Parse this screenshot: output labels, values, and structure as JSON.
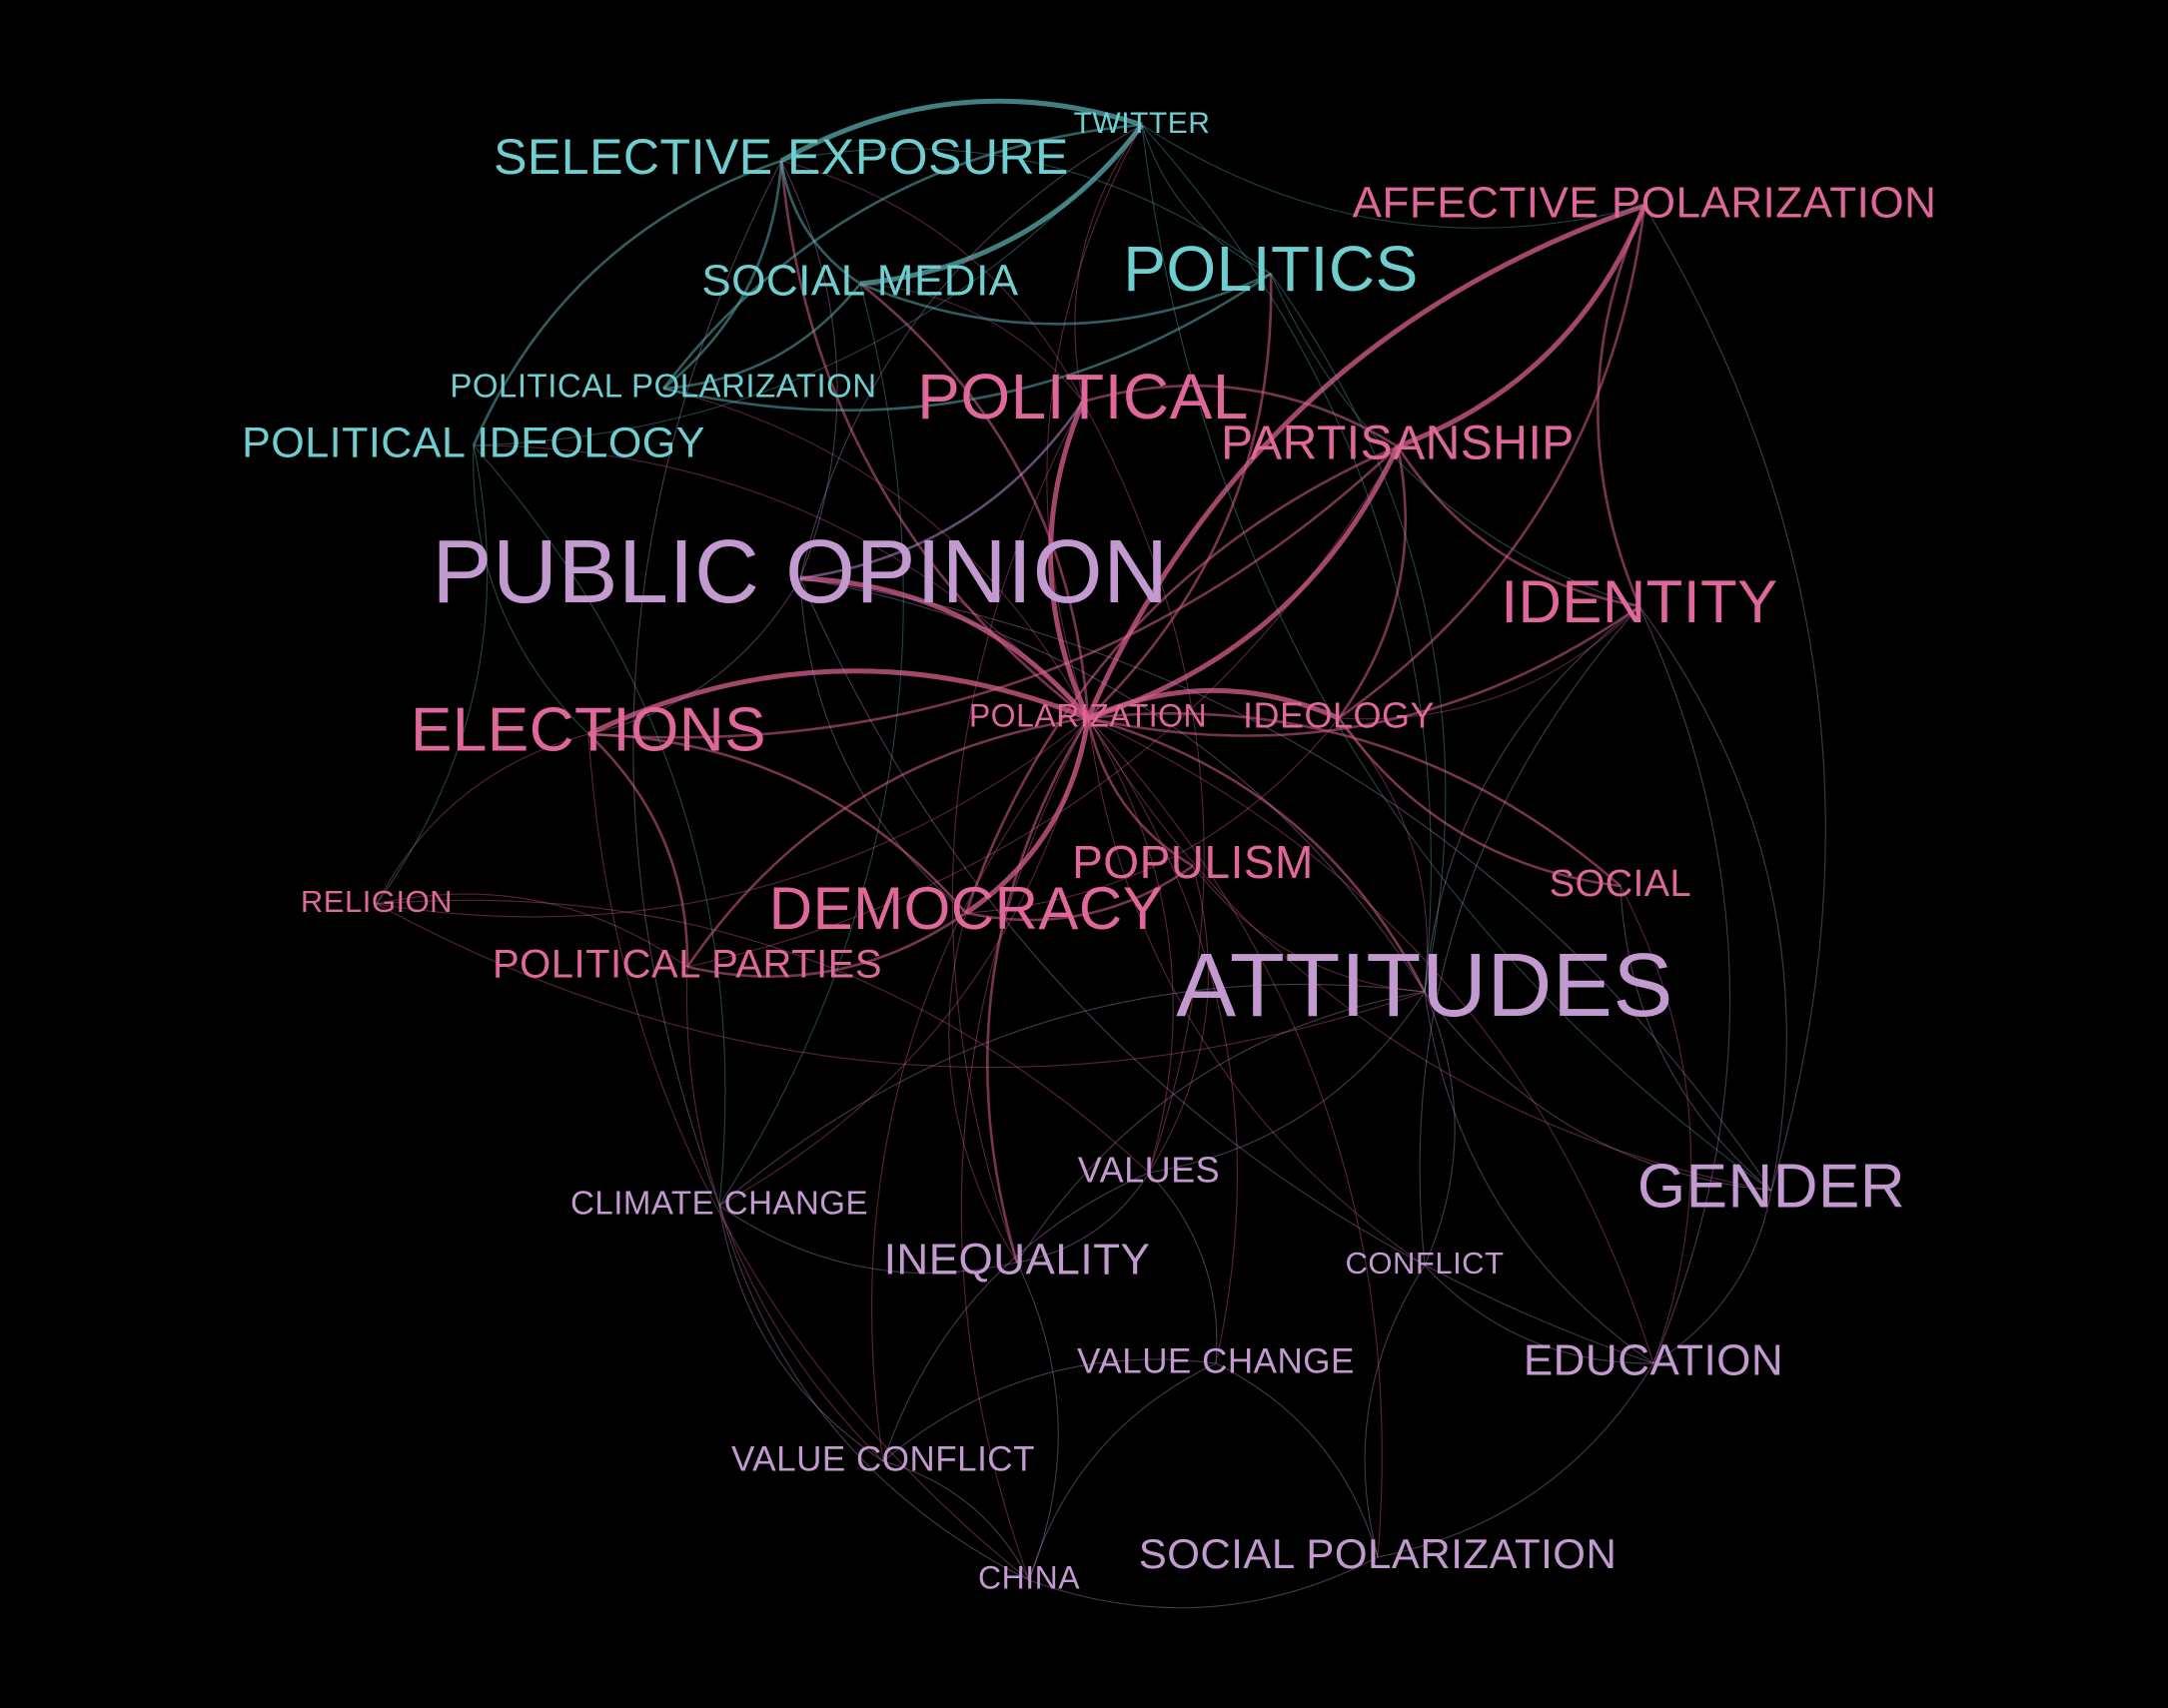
{
  "groups": {
    "cyan": {
      "color": "#6fcfd0",
      "edge": "#5aa9aa"
    },
    "pink": {
      "color": "#e0679a",
      "edge": "#d85f8f"
    },
    "violet": {
      "color": "#c39ad0",
      "edge": "#b48cc4"
    }
  },
  "nodes": [
    {
      "id": "twitter",
      "label": "TWITTER",
      "group": "cyan"
    },
    {
      "id": "selective_exposure",
      "label": "SELECTIVE EXPOSURE",
      "group": "cyan"
    },
    {
      "id": "affective_polarization",
      "label": "AFFECTIVE POLARIZATION",
      "group": "pink"
    },
    {
      "id": "social_media",
      "label": "SOCIAL MEDIA",
      "group": "cyan"
    },
    {
      "id": "politics",
      "label": "POLITICS",
      "group": "cyan"
    },
    {
      "id": "political_polarization",
      "label": "POLITICAL POLARIZATION",
      "group": "cyan"
    },
    {
      "id": "political",
      "label": "POLITICAL",
      "group": "pink"
    },
    {
      "id": "political_ideology",
      "label": "POLITICAL IDEOLOGY",
      "group": "cyan"
    },
    {
      "id": "partisanship",
      "label": "PARTISANSHIP",
      "group": "pink"
    },
    {
      "id": "public_opinion",
      "label": "PUBLIC OPINION",
      "group": "violet"
    },
    {
      "id": "identity",
      "label": "IDENTITY",
      "group": "pink"
    },
    {
      "id": "elections",
      "label": "ELECTIONS",
      "group": "pink"
    },
    {
      "id": "polarization",
      "label": "POLARIZATION",
      "group": "pink"
    },
    {
      "id": "ideology",
      "label": "IDEOLOGY",
      "group": "pink"
    },
    {
      "id": "populism",
      "label": "POPULISM",
      "group": "pink"
    },
    {
      "id": "social",
      "label": "SOCIAL",
      "group": "pink"
    },
    {
      "id": "religion",
      "label": "RELIGION",
      "group": "pink"
    },
    {
      "id": "democracy",
      "label": "DEMOCRACY",
      "group": "pink"
    },
    {
      "id": "political_parties",
      "label": "POLITICAL PARTIES",
      "group": "pink"
    },
    {
      "id": "attitudes",
      "label": "ATTITUDES",
      "group": "violet"
    },
    {
      "id": "values",
      "label": "VALUES",
      "group": "violet"
    },
    {
      "id": "climate_change",
      "label": "CLIMATE CHANGE",
      "group": "violet"
    },
    {
      "id": "gender",
      "label": "GENDER",
      "group": "violet"
    },
    {
      "id": "inequality",
      "label": "INEQUALITY",
      "group": "violet"
    },
    {
      "id": "conflict",
      "label": "CONFLICT",
      "group": "violet"
    },
    {
      "id": "value_change",
      "label": "VALUE CHANGE",
      "group": "violet"
    },
    {
      "id": "education",
      "label": "EDUCATION",
      "group": "violet"
    },
    {
      "id": "value_conflict",
      "label": "VALUE CONFLICT",
      "group": "violet"
    },
    {
      "id": "social_polarization",
      "label": "SOCIAL POLARIZATION",
      "group": "violet"
    },
    {
      "id": "china",
      "label": "CHINA",
      "group": "violet"
    }
  ],
  "edges": [
    [
      "polarization",
      "public_opinion",
      3
    ],
    [
      "polarization",
      "political",
      3
    ],
    [
      "polarization",
      "partisanship",
      3
    ],
    [
      "polarization",
      "affective_polarization",
      3
    ],
    [
      "polarization",
      "identity",
      2
    ],
    [
      "polarization",
      "ideology",
      3
    ],
    [
      "polarization",
      "elections",
      3
    ],
    [
      "polarization",
      "democracy",
      3
    ],
    [
      "polarization",
      "populism",
      2
    ],
    [
      "polarization",
      "social",
      2
    ],
    [
      "polarization",
      "political_parties",
      2
    ],
    [
      "polarization",
      "attitudes",
      2
    ],
    [
      "polarization",
      "inequality",
      2
    ],
    [
      "polarization",
      "religion",
      1
    ],
    [
      "polarization",
      "politics",
      2
    ],
    [
      "polarization",
      "selective_exposure",
      2
    ],
    [
      "polarization",
      "social_media",
      2
    ],
    [
      "polarization",
      "twitter",
      1
    ],
    [
      "polarization",
      "political_ideology",
      1
    ],
    [
      "polarization",
      "values",
      1
    ],
    [
      "polarization",
      "gender",
      1
    ],
    [
      "polarization",
      "education",
      1
    ],
    [
      "polarization",
      "conflict",
      1
    ],
    [
      "polarization",
      "climate_change",
      1
    ],
    [
      "polarization",
      "value_conflict",
      1
    ],
    [
      "polarization",
      "social_polarization",
      1
    ],
    [
      "polarization",
      "china",
      1
    ],
    [
      "polarization",
      "value_change",
      1
    ],
    [
      "polarization",
      "political_polarization",
      1
    ],
    [
      "selective_exposure",
      "twitter",
      3
    ],
    [
      "selective_exposure",
      "social_media",
      2
    ],
    [
      "selective_exposure",
      "political_polarization",
      2
    ],
    [
      "social_media",
      "twitter",
      3
    ],
    [
      "political_polarization",
      "twitter",
      2
    ],
    [
      "political_polarization",
      "social_media",
      2
    ],
    [
      "political_ideology",
      "selective_exposure",
      2
    ],
    [
      "political_ideology",
      "twitter",
      1
    ],
    [
      "politics",
      "twitter",
      1
    ],
    [
      "politics",
      "selective_exposure",
      1
    ],
    [
      "politics",
      "social_media",
      2
    ],
    [
      "political_polarization",
      "politics",
      2
    ],
    [
      "affective_polarization",
      "partisanship",
      3
    ],
    [
      "affective_polarization",
      "identity",
      2
    ],
    [
      "affective_polarization",
      "ideology",
      2
    ],
    [
      "partisanship",
      "identity",
      2
    ],
    [
      "partisanship",
      "ideology",
      2
    ],
    [
      "partisanship",
      "political",
      2
    ],
    [
      "partisanship",
      "elections",
      2
    ],
    [
      "partisanship",
      "democracy",
      2
    ],
    [
      "partisanship",
      "political_parties",
      1
    ],
    [
      "ideology",
      "identity",
      1
    ],
    [
      "ideology",
      "attitudes",
      1
    ],
    [
      "ideology",
      "social",
      2
    ],
    [
      "ideology",
      "democracy",
      1
    ],
    [
      "public_opinion",
      "political",
      2
    ],
    [
      "public_opinion",
      "attitudes",
      1
    ],
    [
      "public_opinion",
      "selective_exposure",
      1
    ],
    [
      "public_opinion",
      "elections",
      1
    ],
    [
      "public_opinion",
      "democracy",
      1
    ],
    [
      "public_opinion",
      "twitter",
      1
    ],
    [
      "political",
      "selective_exposure",
      1
    ],
    [
      "political",
      "twitter",
      1
    ],
    [
      "political",
      "social_media",
      1
    ],
    [
      "elections",
      "political_parties",
      2
    ],
    [
      "elections",
      "religion",
      1
    ],
    [
      "elections",
      "democracy",
      2
    ],
    [
      "democracy",
      "populism",
      2
    ],
    [
      "democracy",
      "political_parties",
      2
    ],
    [
      "democracy",
      "inequality",
      1
    ],
    [
      "religion",
      "political_parties",
      1
    ],
    [
      "religion",
      "attitudes",
      1
    ],
    [
      "religion",
      "values",
      1
    ],
    [
      "attitudes",
      "gender",
      1
    ],
    [
      "attitudes",
      "values",
      1
    ],
    [
      "attitudes",
      "education",
      1
    ],
    [
      "attitudes",
      "conflict",
      1
    ],
    [
      "attitudes",
      "climate_change",
      1
    ],
    [
      "attitudes",
      "identity",
      1
    ],
    [
      "attitudes",
      "inequality",
      1
    ],
    [
      "gender",
      "education",
      1
    ],
    [
      "gender",
      "identity",
      1
    ],
    [
      "gender",
      "social",
      1
    ],
    [
      "gender",
      "affective_polarization",
      1
    ],
    [
      "values",
      "value_change",
      1
    ],
    [
      "values",
      "value_conflict",
      1
    ],
    [
      "values",
      "inequality",
      1
    ],
    [
      "value_change",
      "value_conflict",
      1
    ],
    [
      "value_change",
      "social_polarization",
      1
    ],
    [
      "value_change",
      "china",
      1
    ],
    [
      "social_polarization",
      "china",
      1
    ],
    [
      "social_polarization",
      "education",
      1
    ],
    [
      "social_polarization",
      "conflict",
      1
    ],
    [
      "china",
      "value_conflict",
      1
    ],
    [
      "china",
      "climate_change",
      1
    ],
    [
      "climate_change",
      "value_conflict",
      1
    ],
    [
      "climate_change",
      "selective_exposure",
      1
    ],
    [
      "climate_change",
      "inequality",
      1
    ],
    [
      "inequality",
      "china",
      1
    ],
    [
      "conflict",
      "education",
      1
    ],
    [
      "conflict",
      "identity",
      1
    ],
    [
      "education",
      "identity",
      1
    ],
    [
      "political_ideology",
      "religion",
      1
    ],
    [
      "political_ideology",
      "elections",
      1
    ],
    [
      "political_ideology",
      "climate_change",
      1
    ],
    [
      "twitter",
      "affective_polarization",
      1
    ],
    [
      "twitter",
      "attitudes",
      1
    ],
    [
      "twitter",
      "gender",
      1
    ],
    [
      "social",
      "education",
      1
    ],
    [
      "populism",
      "attitudes",
      1
    ],
    [
      "populism",
      "values",
      1
    ],
    [
      "political_parties",
      "value_conflict",
      1
    ],
    [
      "public_opinion",
      "gender",
      1
    ],
    [
      "public_opinion",
      "education",
      1
    ],
    [
      "social_media",
      "climate_change",
      1
    ],
    [
      "politics",
      "identity",
      1
    ],
    [
      "politics",
      "attitudes",
      1
    ],
    [
      "political",
      "inequality",
      1
    ],
    [
      "political",
      "values",
      1
    ],
    [
      "elections",
      "china",
      1
    ]
  ]
}
